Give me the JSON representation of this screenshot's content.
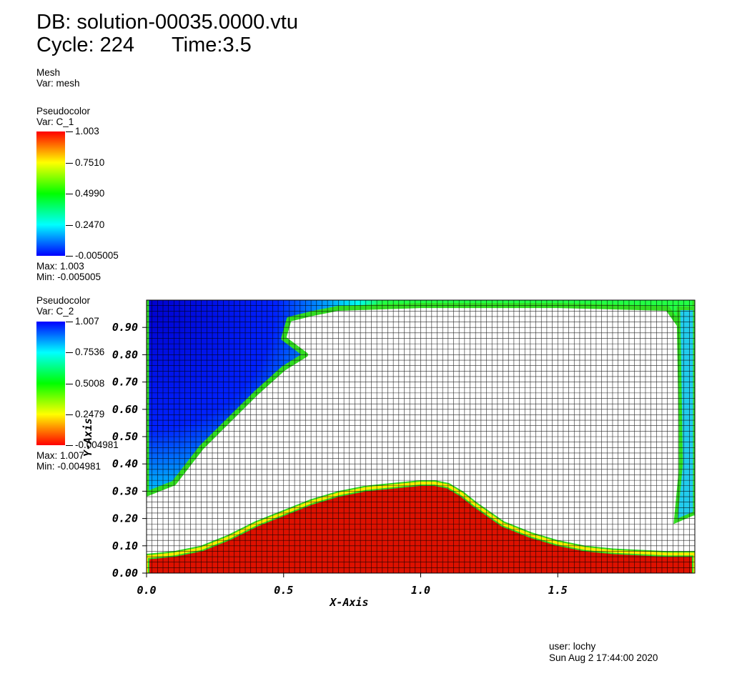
{
  "header": {
    "db_label": "DB: solution-00035.0000.vtu",
    "cycle_label": "Cycle: 224",
    "time_label": "Time:3.5"
  },
  "mesh_legend": {
    "plot_type": "Mesh",
    "var_label": "Var: mesh"
  },
  "legend_c1": {
    "plot_type": "Pseudocolor",
    "var_label": "Var: C_1",
    "ticks": [
      "1.003",
      "0.7510",
      "0.4990",
      "0.2470",
      "-0.005005"
    ],
    "max_label": "Max:  1.003",
    "min_label": "Min: -0.005005",
    "colors_top_to_bottom": [
      "#ff0000",
      "#ffff00",
      "#00ff00",
      "#00ffff",
      "#0000ff"
    ]
  },
  "legend_c2": {
    "plot_type": "Pseudocolor",
    "var_label": "Var: C_2",
    "ticks": [
      "1.007",
      "0.7536",
      "0.5008",
      "0.2479",
      "-0.004981"
    ],
    "max_label": "Max:  1.007",
    "min_label": "Min: -0.004981",
    "colors_top_to_bottom": [
      "#0000ff",
      "#00ffff",
      "#00ff00",
      "#ffff00",
      "#ff0000"
    ]
  },
  "footer": {
    "user": "user: lochy",
    "date": "Sun Aug  2 17:44:00 2020"
  },
  "chart_data": {
    "type": "heatmap",
    "title": "",
    "xlabel": "X-Axis",
    "ylabel": "Y-Axis",
    "xlim": [
      0.0,
      2.0
    ],
    "ylim": [
      0.0,
      1.0
    ],
    "x_ticks": [
      "0.0",
      "0.5",
      "1.0",
      "1.5"
    ],
    "y_ticks": [
      "0.00",
      "0.10",
      "0.20",
      "0.30",
      "0.40",
      "0.50",
      "0.60",
      "0.70",
      "0.80",
      "0.90"
    ],
    "grid": true,
    "series": [
      {
        "name": "C_1",
        "colormap": "blue-cyan-green-yellow-red",
        "region_top_boundary": {
          "x": [
            0.0,
            0.1,
            0.2,
            0.3,
            0.4,
            0.5,
            0.6,
            0.7,
            0.8,
            0.9,
            1.0,
            1.05,
            1.1,
            1.15,
            1.2,
            1.3,
            1.4,
            1.5,
            1.6,
            1.7,
            1.8,
            1.9,
            2.0
          ],
          "y": [
            0.06,
            0.07,
            0.09,
            0.13,
            0.18,
            0.22,
            0.26,
            0.29,
            0.31,
            0.32,
            0.33,
            0.33,
            0.32,
            0.29,
            0.25,
            0.18,
            0.14,
            0.11,
            0.09,
            0.08,
            0.075,
            0.07,
            0.07
          ]
        }
      },
      {
        "name": "C_2",
        "colormap": "red-yellow-green-cyan-blue",
        "region_boundary": {
          "x": [
            0.0,
            0.1,
            0.2,
            0.3,
            0.4,
            0.5,
            0.58,
            0.5,
            0.52,
            0.6,
            0.7,
            1.0,
            1.5,
            1.9,
            1.95,
            1.95,
            2.0
          ],
          "y": [
            0.29,
            0.33,
            0.46,
            0.56,
            0.66,
            0.75,
            0.8,
            0.86,
            0.93,
            0.95,
            0.97,
            0.98,
            0.98,
            0.97,
            0.9,
            0.22,
            0.22
          ]
        }
      }
    ]
  }
}
